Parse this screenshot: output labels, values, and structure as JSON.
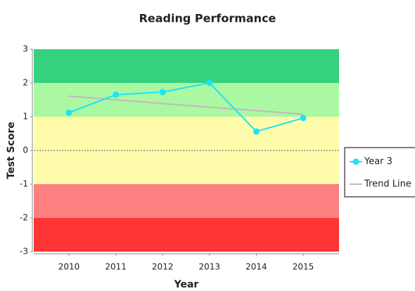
{
  "chart_data": {
    "type": "line",
    "title": "Reading Performance",
    "x_label": "Year",
    "y_label": "Test Score",
    "categories": [
      "2010",
      "2011",
      "2012",
      "2013",
      "2014",
      "2015"
    ],
    "series": [
      {
        "name": "Year 3",
        "color": "#1ee3f5",
        "values": [
          1.12,
          1.65,
          1.73,
          2.0,
          0.56,
          0.96
        ],
        "markers": true
      },
      {
        "name": "Trend Line",
        "color": "#c8b4bc",
        "values": [
          1.61,
          1.5,
          1.39,
          1.28,
          1.18,
          1.07
        ],
        "markers": false
      }
    ],
    "ylim": [
      -3,
      3
    ],
    "yticks": [
      -3,
      -2,
      -1,
      0,
      1,
      2,
      3
    ],
    "bands": [
      {
        "from": 2,
        "to": 3,
        "color": "#36d17f"
      },
      {
        "from": 1,
        "to": 2,
        "color": "#aaf8a2"
      },
      {
        "from": -1,
        "to": 1,
        "color": "#fefcab"
      },
      {
        "from": -2,
        "to": -1,
        "color": "#fe8080"
      },
      {
        "from": -3,
        "to": -2,
        "color": "#fe3535"
      }
    ],
    "zero_line": true,
    "legend": "right"
  }
}
